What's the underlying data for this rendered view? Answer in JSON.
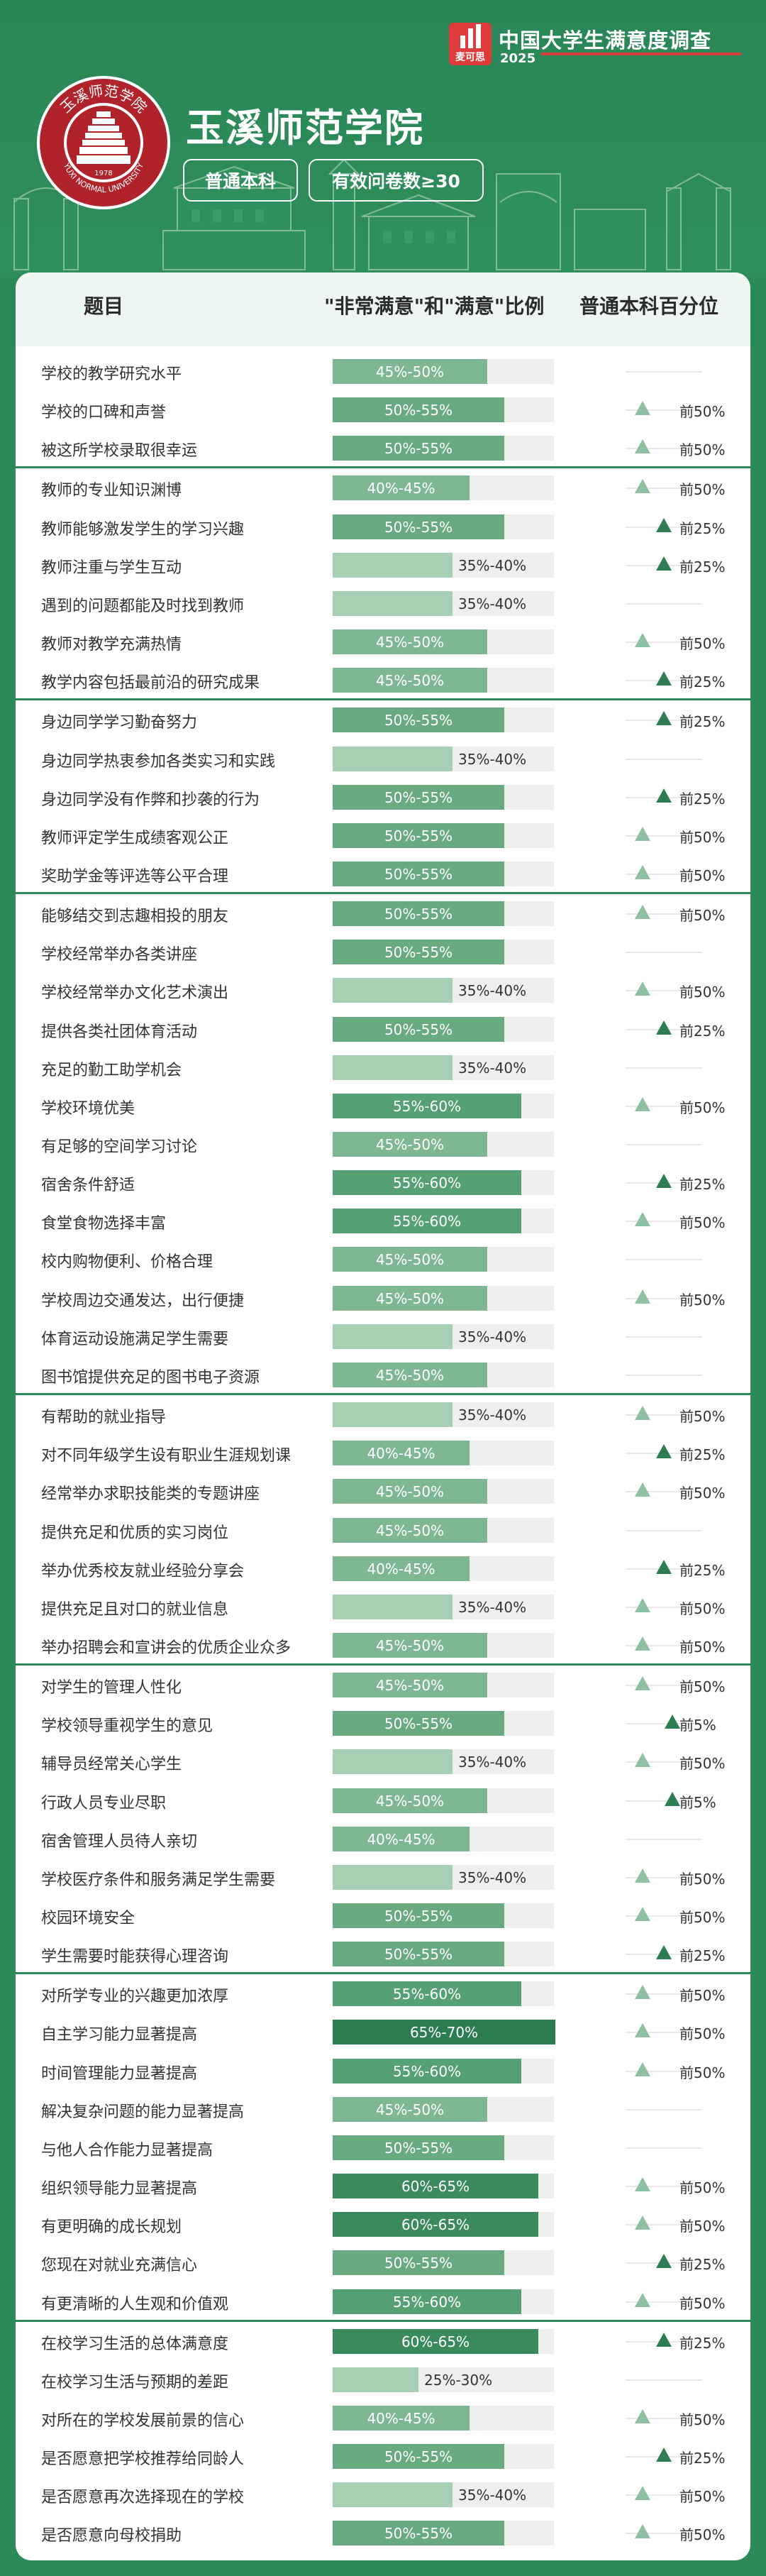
{
  "brand": {
    "logo_text": "麦可思",
    "title": "中国大学生满意度调查",
    "year": "2025"
  },
  "emblem": {
    "top_text": "玉溪师范学院",
    "bottom_text": "YUXI NORMAL UNIVERSITY",
    "year": "1978"
  },
  "school_name": "玉溪师范学院",
  "tags": {
    "type": "普通本科",
    "count": "有效问卷数≥30"
  },
  "table": {
    "col_question": "题目",
    "col_ratio": "\"非常满意\"和\"满意\"比例",
    "col_percentile": "普通本科百分位"
  },
  "colors": {
    "background": "#2c8a5a",
    "range_25_30": "#a6cfb3",
    "range_35_40": "#a6cfb3",
    "range_40_45": "#7fb795",
    "range_45_50": "#7fb795",
    "range_50_55": "#69aa83",
    "range_55_60": "#56a075",
    "range_60_65": "#3b8a5e",
    "range_65_70": "#2b7c50",
    "triangle_light": "#8fc0a1",
    "triangle_dark": "#2e7d52",
    "separator": "#2d8b58",
    "brand_red": "#e03b3b"
  },
  "groups": [
    {
      "rows": [
        {
          "q": "学校的教学研究水平",
          "r": "45%-50%",
          "p": ""
        },
        {
          "q": "学校的口碑和声誉",
          "r": "50%-55%",
          "p": "前50%"
        },
        {
          "q": "被这所学校录取很幸运",
          "r": "50%-55%",
          "p": "前50%"
        }
      ]
    },
    {
      "rows": [
        {
          "q": "教师的专业知识渊博",
          "r": "40%-45%",
          "p": "前50%"
        },
        {
          "q": "教师能够激发学生的学习兴趣",
          "r": "50%-55%",
          "p": "前25%"
        },
        {
          "q": "教师注重与学生互动",
          "r": "35%-40%",
          "p": "前25%"
        },
        {
          "q": "遇到的问题都能及时找到教师",
          "r": "35%-40%",
          "p": ""
        },
        {
          "q": "教师对教学充满热情",
          "r": "45%-50%",
          "p": "前50%"
        },
        {
          "q": "教学内容包括最前沿的研究成果",
          "r": "45%-50%",
          "p": "前25%"
        }
      ]
    },
    {
      "rows": [
        {
          "q": "身边同学学习勤奋努力",
          "r": "50%-55%",
          "p": "前25%"
        },
        {
          "q": "身边同学热衷参加各类实习和实践",
          "r": "35%-40%",
          "p": ""
        },
        {
          "q": "身边同学没有作弊和抄袭的行为",
          "r": "50%-55%",
          "p": "前25%"
        },
        {
          "q": "教师评定学生成绩客观公正",
          "r": "50%-55%",
          "p": "前50%"
        },
        {
          "q": "奖助学金等评选等公平合理",
          "r": "50%-55%",
          "p": "前50%"
        }
      ]
    },
    {
      "rows": [
        {
          "q": "能够结交到志趣相投的朋友",
          "r": "50%-55%",
          "p": "前50%"
        },
        {
          "q": "学校经常举办各类讲座",
          "r": "50%-55%",
          "p": ""
        },
        {
          "q": "学校经常举办文化艺术演出",
          "r": "35%-40%",
          "p": "前50%"
        },
        {
          "q": "提供各类社团体育活动",
          "r": "50%-55%",
          "p": "前25%"
        },
        {
          "q": "充足的勤工助学机会",
          "r": "35%-40%",
          "p": ""
        },
        {
          "q": "学校环境优美",
          "r": "55%-60%",
          "p": "前50%"
        },
        {
          "q": "有足够的空间学习讨论",
          "r": "45%-50%",
          "p": ""
        },
        {
          "q": "宿舍条件舒适",
          "r": "55%-60%",
          "p": "前25%"
        },
        {
          "q": "食堂食物选择丰富",
          "r": "55%-60%",
          "p": "前50%"
        },
        {
          "q": "校内购物便利、价格合理",
          "r": "45%-50%",
          "p": ""
        },
        {
          "q": "学校周边交通发达，出行便捷",
          "r": "45%-50%",
          "p": "前50%"
        },
        {
          "q": "体育运动设施满足学生需要",
          "r": "35%-40%",
          "p": ""
        },
        {
          "q": "图书馆提供充足的图书电子资源",
          "r": "45%-50%",
          "p": ""
        }
      ]
    },
    {
      "rows": [
        {
          "q": "有帮助的就业指导",
          "r": "35%-40%",
          "p": "前50%"
        },
        {
          "q": "对不同年级学生设有职业生涯规划课",
          "r": "40%-45%",
          "p": "前25%"
        },
        {
          "q": "经常举办求职技能类的专题讲座",
          "r": "45%-50%",
          "p": "前50%"
        },
        {
          "q": "提供充足和优质的实习岗位",
          "r": "45%-50%",
          "p": ""
        },
        {
          "q": "举办优秀校友就业经验分享会",
          "r": "40%-45%",
          "p": "前25%"
        },
        {
          "q": "提供充足且对口的就业信息",
          "r": "35%-40%",
          "p": "前50%"
        },
        {
          "q": "举办招聘会和宣讲会的优质企业众多",
          "r": "45%-50%",
          "p": "前50%"
        }
      ]
    },
    {
      "rows": [
        {
          "q": "对学生的管理人性化",
          "r": "45%-50%",
          "p": "前50%"
        },
        {
          "q": "学校领导重视学生的意见",
          "r": "50%-55%",
          "p": "前5%"
        },
        {
          "q": "辅导员经常关心学生",
          "r": "35%-40%",
          "p": "前50%"
        },
        {
          "q": "行政人员专业尽职",
          "r": "45%-50%",
          "p": "前5%"
        },
        {
          "q": "宿舍管理人员待人亲切",
          "r": "40%-45%",
          "p": ""
        },
        {
          "q": "学校医疗条件和服务满足学生需要",
          "r": "35%-40%",
          "p": "前50%"
        },
        {
          "q": "校园环境安全",
          "r": "50%-55%",
          "p": "前50%"
        },
        {
          "q": "学生需要时能获得心理咨询",
          "r": "50%-55%",
          "p": "前25%"
        }
      ]
    },
    {
      "rows": [
        {
          "q": "对所学专业的兴趣更加浓厚",
          "r": "55%-60%",
          "p": "前50%"
        },
        {
          "q": "自主学习能力显著提高",
          "r": "65%-70%",
          "p": "前50%"
        },
        {
          "q": "时间管理能力显著提高",
          "r": "55%-60%",
          "p": "前50%"
        },
        {
          "q": "解决复杂问题的能力显著提高",
          "r": "45%-50%",
          "p": ""
        },
        {
          "q": "与他人合作能力显著提高",
          "r": "50%-55%",
          "p": ""
        },
        {
          "q": "组织领导能力显著提高",
          "r": "60%-65%",
          "p": "前50%"
        },
        {
          "q": "有更明确的成长规划",
          "r": "60%-65%",
          "p": "前50%"
        },
        {
          "q": "您现在对就业充满信心",
          "r": "50%-55%",
          "p": "前25%"
        },
        {
          "q": "有更清晰的人生观和价值观",
          "r": "55%-60%",
          "p": "前50%"
        }
      ]
    },
    {
      "rows": [
        {
          "q": "在校学习生活的总体满意度",
          "r": "60%-65%",
          "p": "前25%"
        },
        {
          "q": "在校学习生活与预期的差距",
          "r": "25%-30%",
          "p": ""
        },
        {
          "q": "对所在的学校发展前景的信心",
          "r": "40%-45%",
          "p": "前50%"
        },
        {
          "q": "是否愿意把学校推荐给同龄人",
          "r": "50%-55%",
          "p": "前25%"
        },
        {
          "q": "是否愿意再次选择现在的学校",
          "r": "35%-40%",
          "p": "前50%"
        },
        {
          "q": "是否愿意向母校捐助",
          "r": "50%-55%",
          "p": "前50%"
        }
      ]
    }
  ]
}
